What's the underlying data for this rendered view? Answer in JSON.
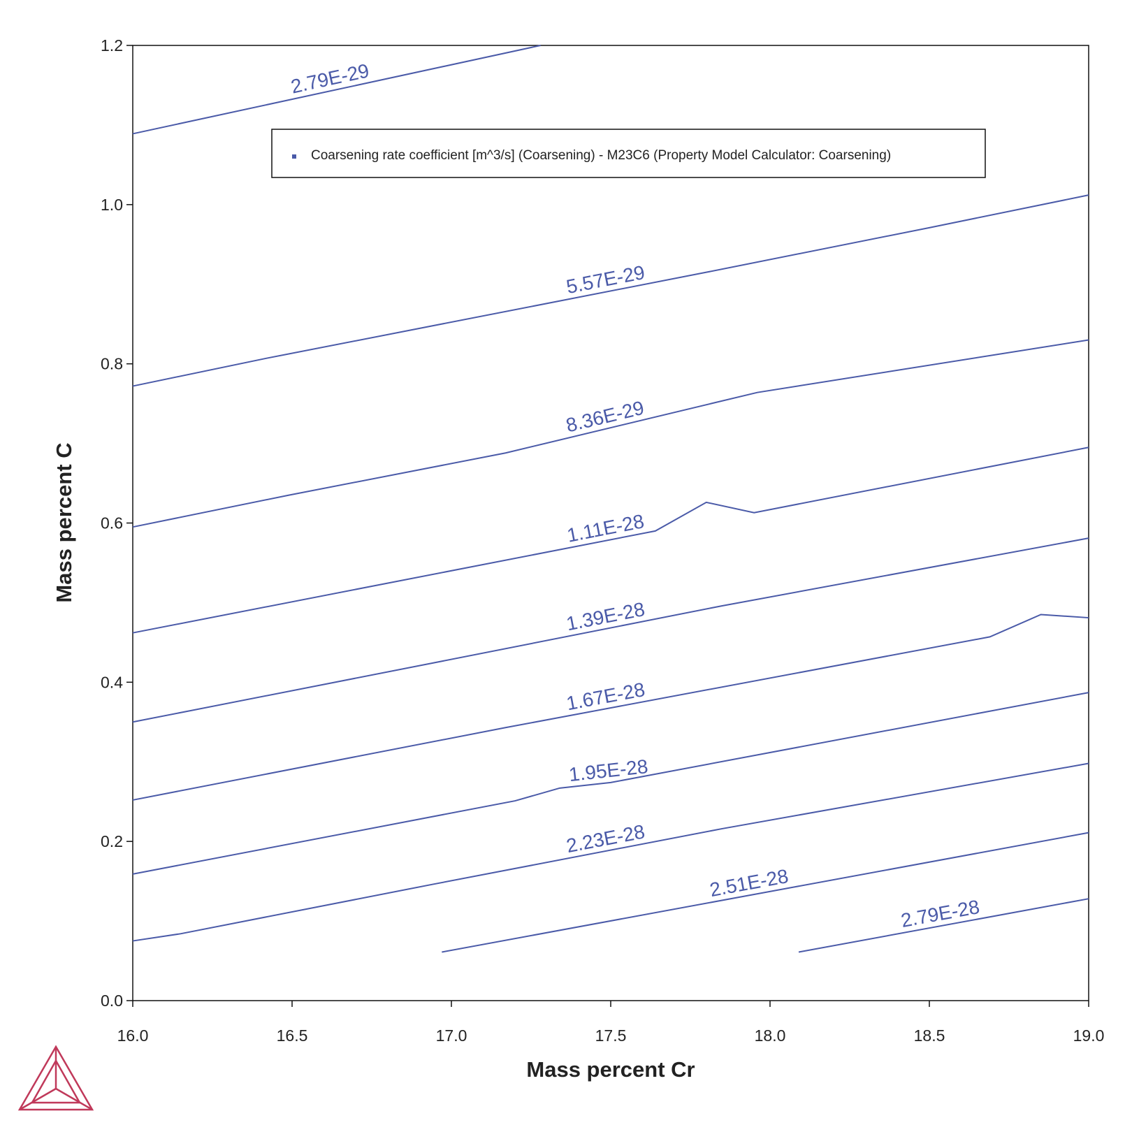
{
  "chart_data": {
    "type": "contour",
    "xlabel": "Mass percent Cr",
    "ylabel": "Mass percent C",
    "legend": "Coarsening rate coefficient [m^3/s] (Coarsening) - M23C6 (Property Model Calculator: Coarsening)",
    "color": "#4a5aa8",
    "xlim": [
      16,
      19
    ],
    "ylim": [
      0,
      1.2
    ],
    "xticks": [
      {
        "value": 16,
        "label": "16.0"
      },
      16.5,
      {
        "value": 17,
        "label": "17.0"
      },
      17.5,
      {
        "value": 18,
        "label": "18.0"
      },
      18.5,
      {
        "value": 19,
        "label": "19.0"
      }
    ],
    "yticks": [
      {
        "value": 0,
        "label": "0.0"
      },
      0.2,
      0.4,
      0.6,
      0.8,
      {
        "value": 1,
        "label": "1.0"
      },
      1.2
    ],
    "series": [
      {
        "name": "2.79E-29",
        "x": [
          16.0,
          17.28
        ],
        "values": [
          1.089,
          1.2
        ]
      },
      {
        "name": "5.57E-29",
        "x": [
          16.0,
          16.42,
          17.8,
          18.5,
          19.0
        ],
        "values": [
          0.772,
          0.807,
          0.915,
          0.971,
          1.012
        ]
      },
      {
        "name": "8.36E-29",
        "x": [
          16.0,
          16.49,
          17.17,
          17.96,
          19.0
        ],
        "values": [
          0.595,
          0.635,
          0.688,
          0.764,
          0.83
        ]
      },
      {
        "name": "1.11E-28",
        "x": [
          16.0,
          17.64,
          17.8,
          17.95,
          19.0
        ],
        "values": [
          0.462,
          0.59,
          0.626,
          0.613,
          0.695
        ]
      },
      {
        "name": "1.39E-28",
        "x": [
          16.0,
          16.94,
          17.85,
          19.0
        ],
        "values": [
          0.35,
          0.424,
          0.496,
          0.581
        ]
      },
      {
        "name": "1.67E-28",
        "x": [
          16.0,
          17.17,
          18.69,
          18.85,
          19.0
        ],
        "values": [
          0.252,
          0.343,
          0.457,
          0.485,
          0.481
        ]
      },
      {
        "name": "1.95E-28",
        "x": [
          16.0,
          17.2,
          17.34,
          17.5,
          19.0
        ],
        "values": [
          0.159,
          0.251,
          0.267,
          0.274,
          0.387
        ]
      },
      {
        "name": "2.23E-28",
        "x": [
          16.0,
          16.15,
          16.94,
          17.85,
          19.0
        ],
        "values": [
          0.075,
          0.084,
          0.146,
          0.216,
          0.298
        ]
      },
      {
        "name": "2.51E-28",
        "x": [
          16.97,
          19.0
        ],
        "values": [
          0.061,
          0.211
        ]
      },
      {
        "name": "2.79E-28",
        "x": [
          18.09,
          19.0
        ],
        "values": [
          0.061,
          0.128
        ]
      }
    ]
  }
}
